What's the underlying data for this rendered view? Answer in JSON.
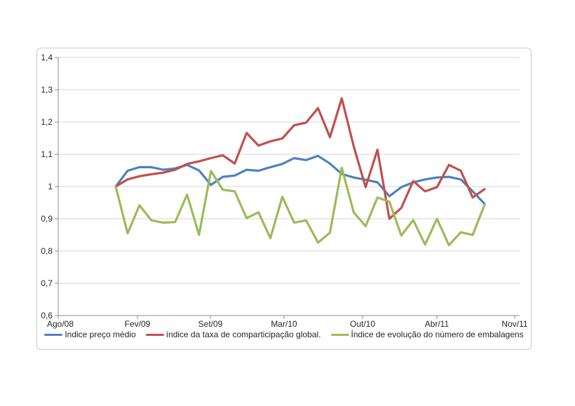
{
  "chart_data": {
    "type": "line",
    "title": "",
    "grid": true,
    "legend_position": "bottom",
    "y_axis": {
      "min": 0.6,
      "max": 1.4,
      "step": 0.1,
      "tick_labels": [
        "1,4",
        "1,3",
        "1,2",
        "1,1",
        "1",
        "0,9",
        "0,8",
        "0,7",
        "0,6"
      ]
    },
    "x_axis": {
      "tick_labels": [
        "Ago/08",
        "Fev/09",
        "Set/09",
        "Mar/10",
        "Out/10",
        "Abr/11",
        "Nov/11"
      ]
    },
    "series": [
      {
        "name": "Indice preço médio",
        "color": "#4F81BD",
        "values": [
          1.0,
          1.049,
          1.06,
          1.06,
          1.052,
          1.056,
          1.067,
          1.05,
          1.005,
          1.03,
          1.034,
          1.052,
          1.049,
          1.06,
          1.07,
          1.088,
          1.082,
          1.095,
          1.071,
          1.039,
          1.028,
          1.021,
          1.013,
          0.97,
          0.998,
          1.013,
          1.022,
          1.028,
          1.03,
          1.022,
          0.985,
          0.946
        ]
      },
      {
        "name": "índice da taxa de comparticipação global.",
        "color": "#C0504D",
        "values": [
          1.0,
          1.022,
          1.032,
          1.038,
          1.043,
          1.052,
          1.07,
          1.078,
          1.088,
          1.097,
          1.071,
          1.166,
          1.127,
          1.14,
          1.149,
          1.19,
          1.198,
          1.243,
          1.153,
          1.273,
          1.125,
          0.998,
          1.114,
          0.9,
          0.934,
          1.017,
          0.985,
          0.998,
          1.067,
          1.049,
          0.966,
          0.992
        ]
      },
      {
        "name": "Índice de evolução do número de embalagens",
        "color": "#9BBB59",
        "values": [
          1.0,
          0.855,
          0.942,
          0.895,
          0.888,
          0.89,
          0.975,
          0.85,
          1.048,
          0.99,
          0.985,
          0.902,
          0.92,
          0.84,
          0.968,
          0.888,
          0.895,
          0.826,
          0.857,
          1.058,
          0.92,
          0.877,
          0.966,
          0.953,
          0.848,
          0.896,
          0.82,
          0.9,
          0.818,
          0.858,
          0.85,
          0.944
        ]
      }
    ],
    "colors": {
      "gridline": "#d6d6d6",
      "axis_line": "#8c8c8c",
      "axis_text": "#262626"
    }
  }
}
